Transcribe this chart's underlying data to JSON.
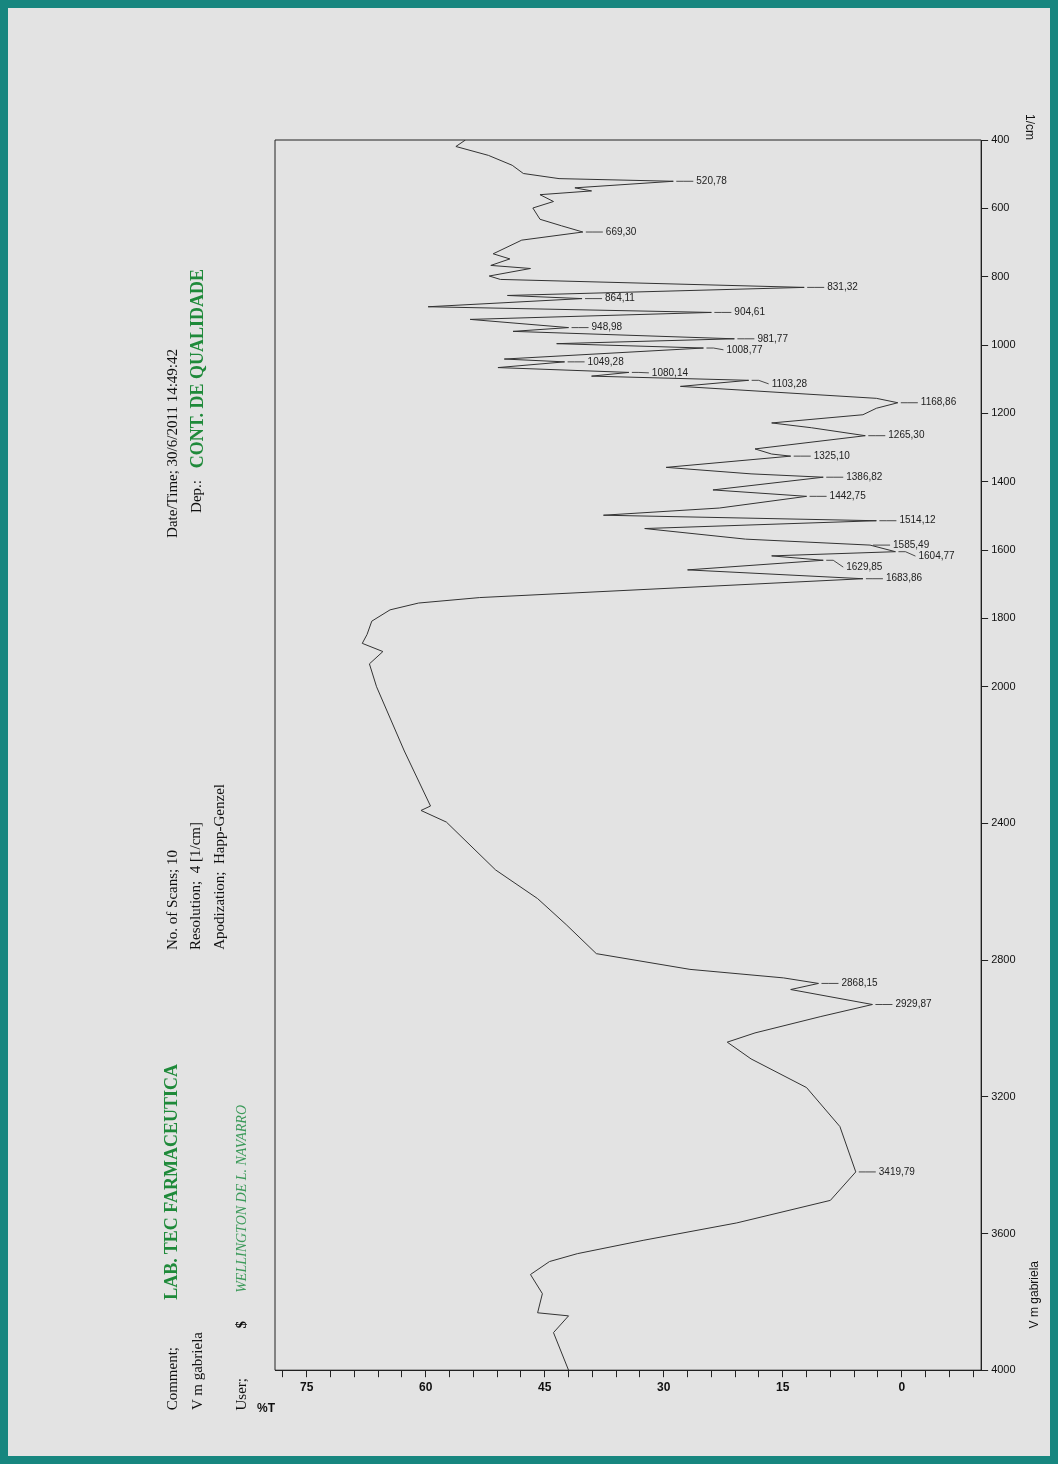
{
  "chart_data": {
    "type": "line",
    "xlabel": "%T",
    "ylabel": "1/cm",
    "marker": "none",
    "line_style": "solid",
    "color": "#333333",
    "xlim": [
      79,
      -10
    ],
    "ylim": [
      4000,
      400
    ],
    "yticks": [
      400,
      600,
      800,
      1000,
      1200,
      1400,
      1600,
      1800,
      2000,
      2400,
      2800,
      3200,
      3600,
      4000
    ],
    "xticks": [
      {
        "value": -9,
        "label": null
      },
      {
        "value": -6,
        "label": null
      },
      {
        "value": -3,
        "label": null
      },
      0,
      {
        "value": 3,
        "label": null
      },
      {
        "value": 6,
        "label": null
      },
      {
        "value": 9,
        "label": null
      },
      {
        "value": 12,
        "label": null
      },
      15,
      {
        "value": 18,
        "label": null
      },
      {
        "value": 21,
        "label": null
      },
      {
        "value": 24,
        "label": null
      },
      {
        "value": 27,
        "label": null
      },
      30,
      {
        "value": 33,
        "label": null
      },
      {
        "value": 36,
        "label": null
      },
      {
        "value": 39,
        "label": null
      },
      {
        "value": 42,
        "label": null
      },
      45,
      {
        "value": 48,
        "label": null
      },
      {
        "value": 51,
        "label": null
      },
      {
        "value": 54,
        "label": null
      },
      {
        "value": 57,
        "label": null
      },
      60,
      {
        "value": 63,
        "label": null
      },
      {
        "value": 66,
        "label": null
      },
      {
        "value": 69,
        "label": null
      },
      {
        "value": 72,
        "label": null
      },
      75,
      {
        "value": 78,
        "label": null
      }
    ],
    "values": [
      400,
      419,
      445,
      474,
      498,
      513,
      520.78,
      540,
      549,
      560,
      580,
      599,
      632,
      651,
      669.3,
      693,
      733,
      748,
      767,
      776,
      798,
      808,
      831.32,
      855,
      864.11,
      888,
      904.61,
      925,
      948.98,
      960,
      981.77,
      996,
      1008.77,
      1041,
      1049.28,
      1066,
      1080.14,
      1091,
      1103.28,
      1121,
      1156,
      1168.86,
      1185,
      1204,
      1228,
      1242,
      1265.3,
      1304,
      1319,
      1325.1,
      1358,
      1377,
      1386.82,
      1424,
      1442.75,
      1477,
      1498,
      1514.12,
      1537,
      1568,
      1585.49,
      1604.77,
      1617,
      1629.85,
      1658,
      1683.86,
      1739,
      1755,
      1775,
      1808,
      1847,
      1873,
      1897,
      1933,
      2000,
      2188,
      2349,
      2362,
      2396,
      2536,
      2620,
      2696,
      2781,
      2827,
      2852,
      2868.15,
      2886,
      2929.87,
      2965,
      3013,
      3040,
      3089,
      3173,
      3287,
      3419.79,
      3503,
      3569,
      3620,
      3659,
      3682,
      3720,
      3776,
      3832,
      3841,
      3890,
      4000
    ],
    "x": [
      55.0,
      56.2,
      52.1,
      49.1,
      47.7,
      43.2,
      28.8,
      41.2,
      39.1,
      45.6,
      43.9,
      46.5,
      45.6,
      42.9,
      40.2,
      47.9,
      51.5,
      49.4,
      51.8,
      46.8,
      52.0,
      50.6,
      12.3,
      49.7,
      40.3,
      59.7,
      24.0,
      54.4,
      42.0,
      49.0,
      21.1,
      43.5,
      25.0,
      50.1,
      42.5,
      50.9,
      34.4,
      39.1,
      19.3,
      27.9,
      3.2,
      0.5,
      3.2,
      4.9,
      16.4,
      11.4,
      4.6,
      18.5,
      16.4,
      14.0,
      29.7,
      19.0,
      9.9,
      23.8,
      12.0,
      23.0,
      37.6,
      3.2,
      32.4,
      19.7,
      4.0,
      0.8,
      16.4,
      9.9,
      27.0,
      4.9,
      53.2,
      60.9,
      64.5,
      66.8,
      67.4,
      68.0,
      65.4,
      67.1,
      66.2,
      62.7,
      59.4,
      60.6,
      57.4,
      51.2,
      45.9,
      42.3,
      38.5,
      26.7,
      14.9,
      10.5,
      14.0,
      3.7,
      10.2,
      18.5,
      22.0,
      19.0,
      12.0,
      7.8,
      5.8,
      9.0,
      20.8,
      32.6,
      40.9,
      44.4,
      46.8,
      45.3,
      45.9,
      42.0,
      43.9,
      42.0
    ],
    "annotations": [
      "Comment;",
      "LAB. TEC FARMACEUTICA",
      "V m gabriela",
      "User;",
      "$",
      "WELLINGTON DE L. NAVARRO",
      "No. of Scans; 10",
      "Resolution;  4 [1/cm]",
      "Apodization;  Happ-Genzel",
      "Date/Time; 30/6/2011 14:49:42",
      "Dep.:",
      "CONT. DE QUALIDADE",
      "V m gabriela",
      {
        "text": "520,78",
        "y": 520.78,
        "x": 28.8
      },
      {
        "text": "669,30",
        "y": 669.3,
        "x": 40.2
      },
      {
        "text": "831,32",
        "y": 831.32,
        "x": 12.3
      },
      {
        "text": "864,11",
        "y": 864.11,
        "x": 40.3
      },
      {
        "text": "904,61",
        "y": 904.61,
        "x": 24.0
      },
      {
        "text": "948,98",
        "y": 948.98,
        "x": 42.0
      },
      {
        "text": "981,77",
        "y": 981.77,
        "x": 21.1
      },
      {
        "text": "1008,77",
        "y": 1008.77,
        "x": 25.0
      },
      {
        "text": "1049,28",
        "y": 1049.28,
        "x": 42.5
      },
      {
        "text": "1080,14",
        "y": 1080.14,
        "x": 34.4
      },
      {
        "text": "1103,28",
        "y": 1103.28,
        "x": 19.3
      },
      {
        "text": "1168,86",
        "y": 1168.86,
        "x": 0.5
      },
      {
        "text": "1265,30",
        "y": 1265.3,
        "x": 4.6
      },
      {
        "text": "1325,10",
        "y": 1325.1,
        "x": 14.0
      },
      {
        "text": "1386,82",
        "y": 1386.82,
        "x": 9.9
      },
      {
        "text": "1442,75",
        "y": 1442.75,
        "x": 12.0
      },
      {
        "text": "1514,12",
        "y": 1514.12,
        "x": 3.2
      },
      {
        "text": "1585,49",
        "y": 1585.49,
        "x": 4.0
      },
      {
        "text": "1604,77",
        "y": 1604.77,
        "x": 0.8
      },
      {
        "text": "1629,85",
        "y": 1629.85,
        "x": 9.9
      },
      {
        "text": "1683,86",
        "y": 1683.86,
        "x": 4.9
      },
      {
        "text": "2868,15",
        "y": 2868.15,
        "x": 10.5
      },
      {
        "text": "2929,87",
        "y": 2929.87,
        "x": 3.7
      },
      {
        "text": "3419,79",
        "y": 3419.79,
        "x": 5.8
      }
    ]
  }
}
